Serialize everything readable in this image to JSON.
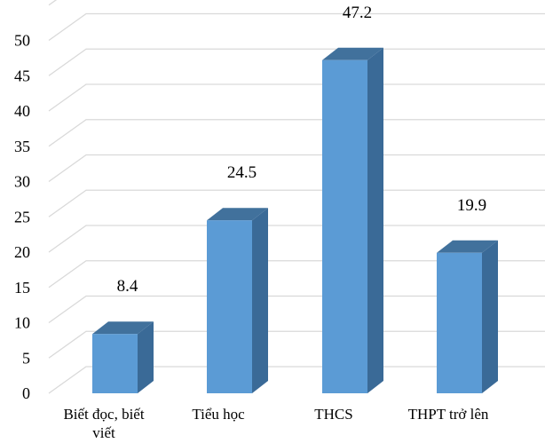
{
  "chart_data": {
    "type": "bar",
    "categories": [
      "Biết đọc, biết viết",
      "Tiểu học",
      "THCS",
      "THPT trở lên"
    ],
    "category_lines": [
      [
        "Biết đọc, biết",
        "viết"
      ],
      [
        "Tiểu học"
      ],
      [
        "THCS"
      ],
      [
        "THPT trở lên"
      ]
    ],
    "values": [
      8.4,
      24.5,
      47.2,
      19.9
    ],
    "value_labels": [
      "8.4",
      "24.5",
      "47.2",
      "19.9"
    ],
    "yticks": [
      0,
      5,
      10,
      15,
      20,
      25,
      30,
      35,
      40,
      45,
      50
    ],
    "ylim": [
      0,
      55
    ],
    "title": "",
    "xlabel": "",
    "ylabel": "",
    "grid": true,
    "legend": "none",
    "style": "3d-bar",
    "colors": {
      "bar_front": "#5b9bd5",
      "bar_side": "#3a6a97",
      "bar_top": "#41719c",
      "gridline": "#d9d9d9"
    }
  }
}
